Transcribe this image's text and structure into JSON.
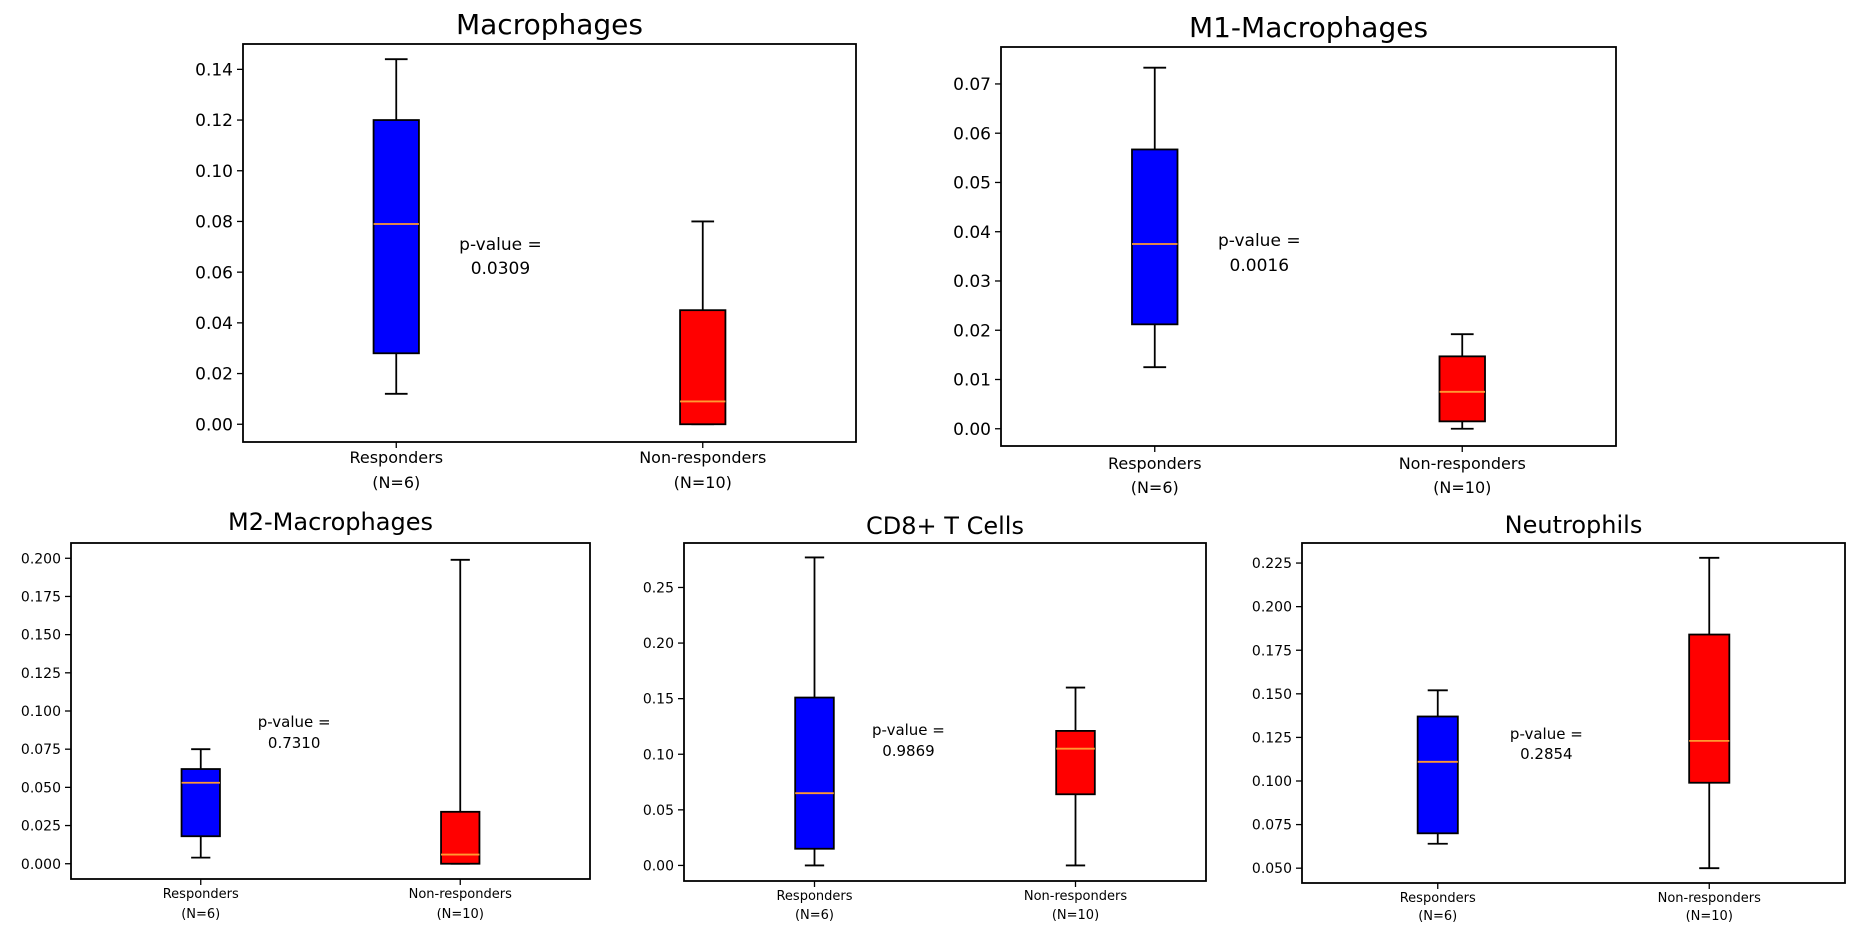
{
  "chart_data": [
    {
      "type": "box",
      "title": "Macrophages",
      "ylim": [
        -0.007,
        0.15
      ],
      "yticks": [
        0.0,
        0.02,
        0.04,
        0.06,
        0.08,
        0.1,
        0.12,
        0.14
      ],
      "tick_decimals": 2,
      "grid": false,
      "annotation": [
        "p-value =",
        "0.0309"
      ],
      "groups": [
        {
          "label": [
            "Responders",
            "(N=6)"
          ],
          "color": "#0000ff",
          "min": 0.012,
          "q1": 0.028,
          "median": 0.079,
          "q3": 0.12,
          "max": 0.144
        },
        {
          "label": [
            "Non-responders",
            "(N=10)"
          ],
          "color": "#ff0000",
          "min": 0.0,
          "q1": 0.0,
          "median": 0.009,
          "q3": 0.045,
          "max": 0.08
        }
      ]
    },
    {
      "type": "box",
      "title": "M1-Macrophages",
      "ylim": [
        -0.0035,
        0.0775
      ],
      "yticks": [
        0.0,
        0.01,
        0.02,
        0.03,
        0.04,
        0.05,
        0.06,
        0.07
      ],
      "tick_decimals": 2,
      "grid": false,
      "annotation": [
        "p-value =",
        "0.0016"
      ],
      "groups": [
        {
          "label": [
            "Responders",
            "(N=6)"
          ],
          "color": "#0000ff",
          "min": 0.0125,
          "q1": 0.0212,
          "median": 0.0375,
          "q3": 0.0567,
          "max": 0.0733
        },
        {
          "label": [
            "Non-responders",
            "(N=10)"
          ],
          "color": "#ff0000",
          "min": 0.0,
          "q1": 0.0015,
          "median": 0.0075,
          "q3": 0.0147,
          "max": 0.0192
        }
      ]
    },
    {
      "type": "box",
      "title": "M2-Macrophages",
      "ylim": [
        -0.01,
        0.21
      ],
      "yticks": [
        0.0,
        0.025,
        0.05,
        0.075,
        0.1,
        0.125,
        0.15,
        0.175,
        0.2
      ],
      "tick_decimals": 3,
      "grid": false,
      "annotation": [
        "p-value =",
        "0.7310"
      ],
      "groups": [
        {
          "label": [
            "Responders",
            "(N=6)"
          ],
          "color": "#0000ff",
          "min": 0.004,
          "q1": 0.018,
          "median": 0.053,
          "q3": 0.062,
          "max": 0.075
        },
        {
          "label": [
            "Non-responders",
            "(N=10)"
          ],
          "color": "#ff0000",
          "min": 0.0,
          "q1": 0.0,
          "median": 0.006,
          "q3": 0.034,
          "max": 0.199
        }
      ]
    },
    {
      "type": "box",
      "title": "CD8+ T Cells",
      "ylim": [
        -0.014,
        0.29
      ],
      "yticks": [
        0.0,
        0.05,
        0.1,
        0.15,
        0.2,
        0.25
      ],
      "tick_decimals": 2,
      "grid": false,
      "annotation": [
        "p-value =",
        "0.9869"
      ],
      "groups": [
        {
          "label": [
            "Responders",
            "(N=6)"
          ],
          "color": "#0000ff",
          "min": 0.0,
          "q1": 0.015,
          "median": 0.065,
          "q3": 0.151,
          "max": 0.277
        },
        {
          "label": [
            "Non-responders",
            "(N=10)"
          ],
          "color": "#ff0000",
          "min": 0.0,
          "q1": 0.064,
          "median": 0.105,
          "q3": 0.121,
          "max": 0.16
        }
      ]
    },
    {
      "type": "box",
      "title": "Neutrophils",
      "ylim": [
        0.0415,
        0.2365
      ],
      "yticks": [
        0.05,
        0.075,
        0.1,
        0.125,
        0.15,
        0.175,
        0.2,
        0.225
      ],
      "tick_decimals": 3,
      "grid": false,
      "annotation": [
        "p-value =",
        "0.2854"
      ],
      "groups": [
        {
          "label": [
            "Responders",
            "(N=6)"
          ],
          "color": "#0000ff",
          "min": 0.064,
          "q1": 0.07,
          "median": 0.111,
          "q3": 0.137,
          "max": 0.152
        },
        {
          "label": [
            "Non-responders",
            "(N=10)"
          ],
          "color": "#ff0000",
          "min": 0.05,
          "q1": 0.099,
          "median": 0.123,
          "q3": 0.184,
          "max": 0.228
        }
      ]
    }
  ],
  "colors": {
    "median": "#ff9933",
    "axes": "#000000",
    "responders": "#0000ff",
    "non_responders": "#ff0000"
  }
}
